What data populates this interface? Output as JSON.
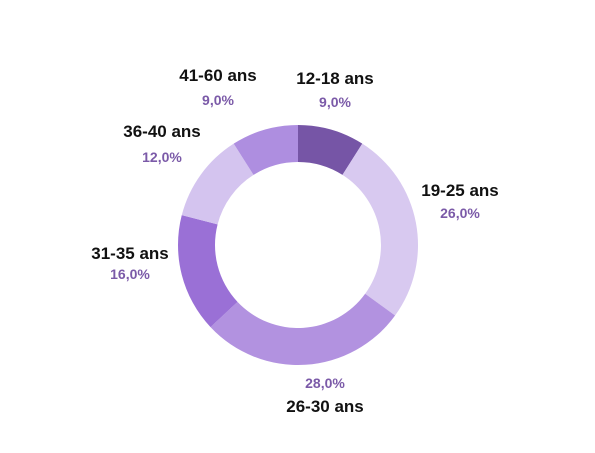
{
  "chart_data": {
    "type": "pie",
    "donut": true,
    "legend": "none",
    "value_color": "#7b5aa8",
    "label_color": "#111111",
    "slices": [
      {
        "label": "12-18 ans",
        "value": 9.0,
        "value_label": "9,0%",
        "color": "#7655a6"
      },
      {
        "label": "19-25 ans",
        "value": 26.0,
        "value_label": "26,0%",
        "color": "#d8c9f0"
      },
      {
        "label": "26-30 ans",
        "value": 28.0,
        "value_label": "28,0%",
        "color": "#b292e0"
      },
      {
        "label": "31-35 ans",
        "value": 16.0,
        "value_label": "16,0%",
        "color": "#9a70d6"
      },
      {
        "label": "36-40 ans",
        "value": 12.0,
        "value_label": "12,0%",
        "color": "#d4c4ef"
      },
      {
        "label": "41-60 ans",
        "value": 9.0,
        "value_label": "9,0%",
        "color": "#ae8ee0"
      }
    ]
  }
}
